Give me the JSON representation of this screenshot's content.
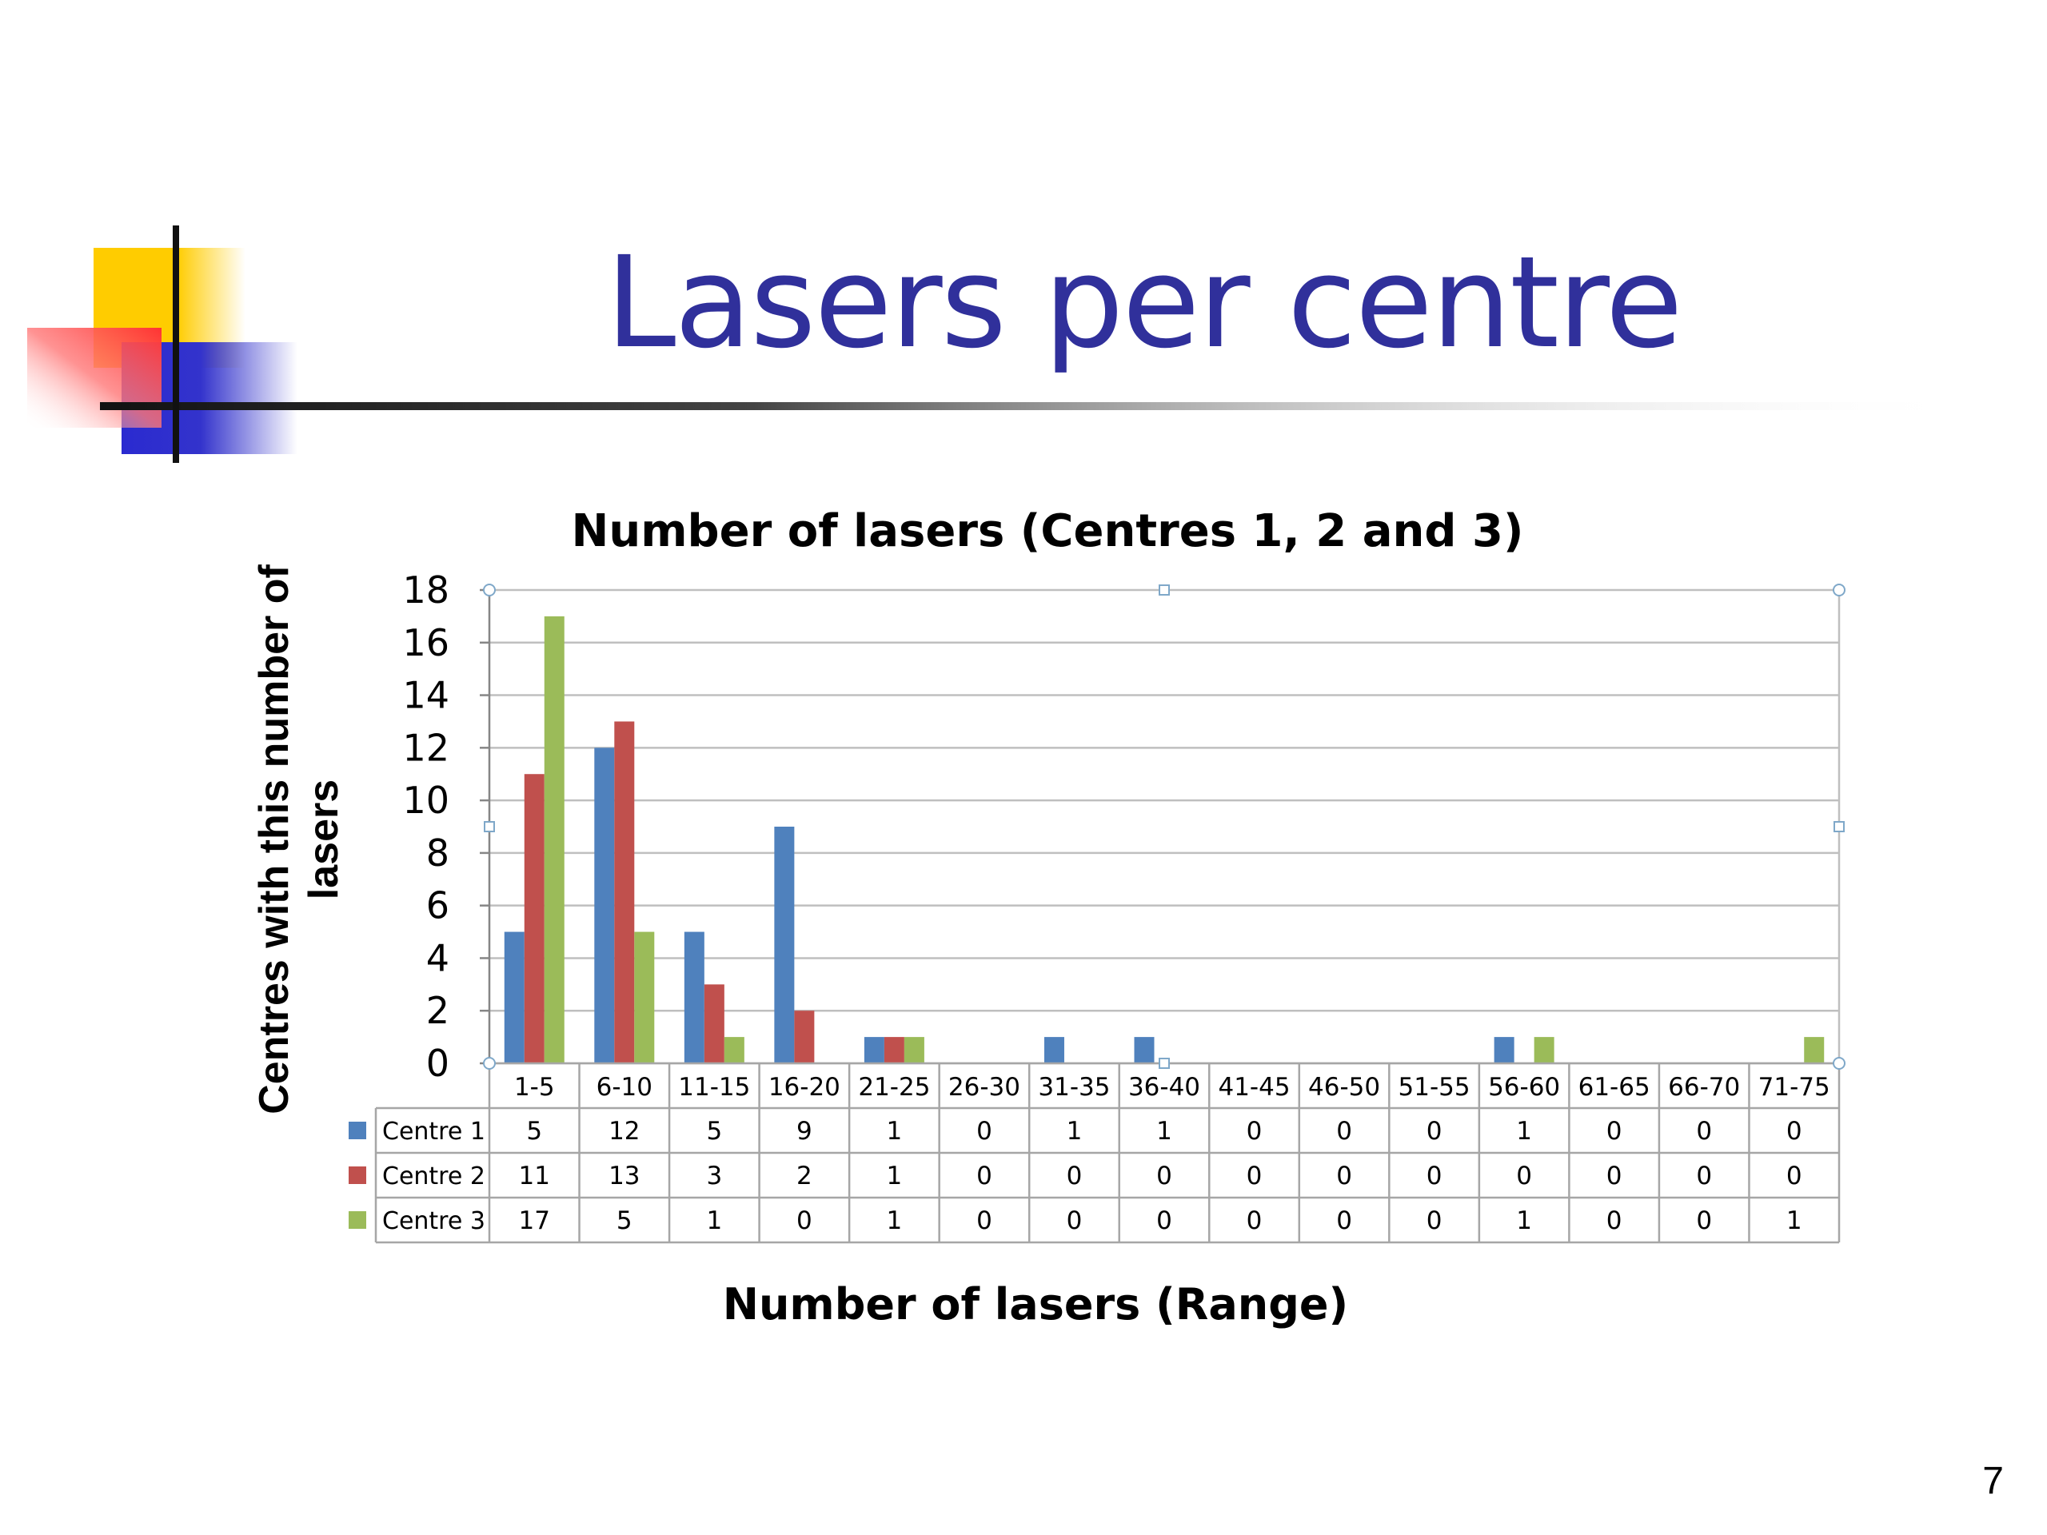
{
  "slide": {
    "title": "Lasers per centre",
    "page_number": "7"
  },
  "colors": {
    "title": "#30309b",
    "series": [
      "#4f81bd",
      "#c0504d",
      "#9bbb59"
    ]
  },
  "chart_data": {
    "type": "bar",
    "title": "Number of lasers (Centres 1, 2 and 3)",
    "xlabel": "Number of lasers (Range)",
    "ylabel": "Centres with this number of lasers",
    "ylim": [
      0,
      18
    ],
    "yticks": [
      0,
      2,
      4,
      6,
      8,
      10,
      12,
      14,
      16,
      18
    ],
    "grid": true,
    "legend": "data-table",
    "categories": [
      "1-5",
      "6-10",
      "11-15",
      "16-20",
      "21-25",
      "26-30",
      "31-35",
      "36-40",
      "41-45",
      "46-50",
      "51-55",
      "56-60",
      "61-65",
      "66-70",
      "71-75"
    ],
    "series": [
      {
        "name": "Centre 1",
        "values": [
          5,
          12,
          5,
          9,
          1,
          0,
          1,
          1,
          0,
          0,
          0,
          1,
          0,
          0,
          0
        ]
      },
      {
        "name": "Centre 2",
        "values": [
          11,
          13,
          3,
          2,
          1,
          0,
          0,
          0,
          0,
          0,
          0,
          0,
          0,
          0,
          0
        ]
      },
      {
        "name": "Centre 3",
        "values": [
          17,
          5,
          1,
          0,
          1,
          0,
          0,
          0,
          0,
          0,
          0,
          1,
          0,
          0,
          1
        ]
      }
    ]
  }
}
